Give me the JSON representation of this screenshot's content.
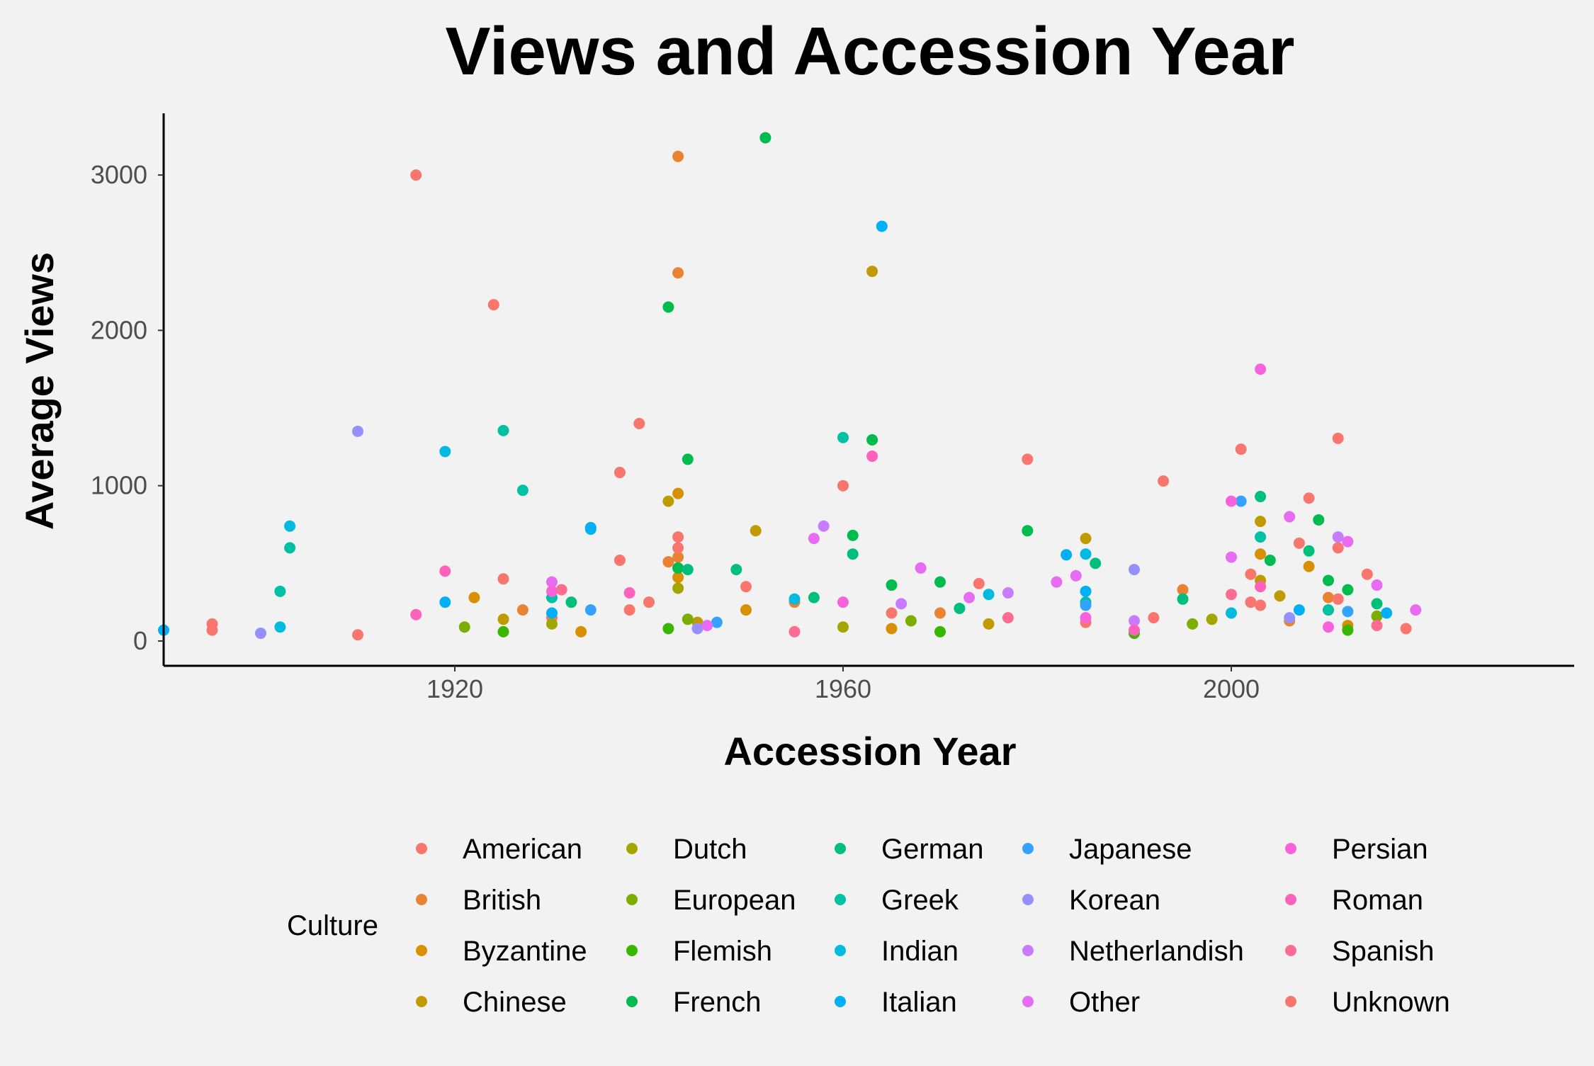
{
  "chart_data": {
    "type": "scatter",
    "title": "Views and Accession Year",
    "xlabel": "Accession Year",
    "ylabel": "Average Views",
    "xlim": [
      1890,
      2027
    ],
    "ylim": [
      -150,
      3400
    ],
    "x_ticks": [
      1920,
      1960,
      2000
    ],
    "y_ticks": [
      0,
      1000,
      2000,
      3000
    ],
    "grid": false,
    "legend": {
      "title": "Culture",
      "placement": "bottom",
      "ncol": 5
    },
    "series": [
      {
        "name": "American",
        "color": "#F8766D",
        "points": [
          [
            1916,
            3000
          ],
          [
            1924,
            2165
          ],
          [
            1925,
            400
          ],
          [
            1937,
            1085
          ],
          [
            1937,
            520
          ],
          [
            1939,
            1400
          ],
          [
            1960,
            1000
          ],
          [
            1974,
            370
          ],
          [
            1979,
            1170
          ],
          [
            1993,
            1030
          ],
          [
            2001,
            1235
          ],
          [
            2007,
            630
          ],
          [
            2008,
            920
          ],
          [
            2011,
            1305
          ],
          [
            2014,
            430
          ],
          [
            1895,
            110
          ],
          [
            1895,
            70
          ],
          [
            1910,
            40
          ],
          [
            1930,
            150
          ],
          [
            1940,
            250
          ],
          [
            1950,
            350
          ],
          [
            1985,
            120
          ],
          [
            2003,
            230
          ],
          [
            2002,
            430
          ],
          [
            2011,
            600
          ]
        ]
      },
      {
        "name": "British",
        "color": "#EA8331",
        "points": [
          [
            1943,
            3120
          ],
          [
            1943,
            2370
          ],
          [
            1943,
            540
          ],
          [
            1942,
            510
          ],
          [
            1927,
            200
          ],
          [
            1955,
            250
          ],
          [
            1970,
            180
          ],
          [
            1995,
            330
          ],
          [
            2006,
            130
          ],
          [
            2010,
            280
          ]
        ]
      },
      {
        "name": "Byzantine",
        "color": "#D89000",
        "points": [
          [
            1922,
            280
          ],
          [
            1943,
            950
          ],
          [
            1943,
            410
          ],
          [
            1950,
            200
          ],
          [
            1933,
            60
          ],
          [
            1965,
            80
          ],
          [
            2003,
            560
          ],
          [
            2008,
            480
          ],
          [
            2012,
            100
          ]
        ]
      },
      {
        "name": "Chinese",
        "color": "#C09B00",
        "points": [
          [
            1942,
            900
          ],
          [
            1951,
            710
          ],
          [
            1963,
            2380
          ],
          [
            1985,
            660
          ],
          [
            2003,
            770
          ],
          [
            2003,
            390
          ],
          [
            2005,
            290
          ],
          [
            1925,
            140
          ],
          [
            1945,
            120
          ],
          [
            1975,
            110
          ]
        ]
      },
      {
        "name": "Dutch",
        "color": "#A3A500",
        "points": [
          [
            1943,
            340
          ],
          [
            1943,
            470
          ],
          [
            1930,
            110
          ],
          [
            1960,
            90
          ],
          [
            1998,
            140
          ],
          [
            2010,
            200
          ]
        ]
      },
      {
        "name": "European",
        "color": "#7CAE00",
        "points": [
          [
            1921,
            90
          ],
          [
            1944,
            140
          ],
          [
            1967,
            130
          ],
          [
            1996,
            110
          ],
          [
            2015,
            160
          ]
        ]
      },
      {
        "name": "Flemish",
        "color": "#39B600",
        "points": [
          [
            1925,
            60
          ],
          [
            1942,
            80
          ],
          [
            1970,
            60
          ],
          [
            1990,
            50
          ],
          [
            2012,
            70
          ]
        ]
      },
      {
        "name": "French",
        "color": "#00BB4E",
        "points": [
          [
            1952,
            3240
          ],
          [
            1942,
            2150
          ],
          [
            1944,
            1170
          ],
          [
            1963,
            1295
          ],
          [
            1961,
            680
          ],
          [
            1979,
            710
          ],
          [
            2009,
            780
          ],
          [
            2004,
            520
          ],
          [
            2010,
            390
          ],
          [
            2012,
            330
          ],
          [
            1970,
            380
          ],
          [
            1943,
            470
          ],
          [
            1965,
            360
          ]
        ]
      },
      {
        "name": "German",
        "color": "#00BF7D",
        "points": [
          [
            1944,
            460
          ],
          [
            1949,
            460
          ],
          [
            1961,
            560
          ],
          [
            1986,
            500
          ],
          [
            2003,
            930
          ],
          [
            2008,
            580
          ],
          [
            1932,
            250
          ],
          [
            1957,
            280
          ],
          [
            1995,
            270
          ],
          [
            2015,
            240
          ],
          [
            1972,
            210
          ]
        ]
      },
      {
        "name": "Greek",
        "color": "#00C1A3",
        "points": [
          [
            1925,
            1355
          ],
          [
            1927,
            970
          ],
          [
            1960,
            1310
          ],
          [
            1902,
            320
          ],
          [
            1903,
            600
          ],
          [
            1930,
            280
          ],
          [
            1985,
            250
          ],
          [
            2003,
            670
          ],
          [
            2010,
            200
          ]
        ]
      },
      {
        "name": "Indian",
        "color": "#00BAE0",
        "points": [
          [
            1934,
            720
          ],
          [
            1919,
            1220
          ],
          [
            1903,
            740
          ],
          [
            1985,
            560
          ],
          [
            1902,
            90
          ],
          [
            1955,
            270
          ],
          [
            1975,
            300
          ],
          [
            2000,
            180
          ]
        ]
      },
      {
        "name": "Italian",
        "color": "#00B0F6",
        "points": [
          [
            1964,
            2670
          ],
          [
            1934,
            730
          ],
          [
            1919,
            250
          ],
          [
            1983,
            555
          ],
          [
            1985,
            320
          ],
          [
            1930,
            180
          ],
          [
            1890,
            70
          ],
          [
            2007,
            200
          ],
          [
            2016,
            180
          ]
        ]
      },
      {
        "name": "Japanese",
        "color": "#35A2FF",
        "points": [
          [
            2001,
            900
          ],
          [
            1934,
            200
          ],
          [
            1947,
            120
          ],
          [
            1985,
            230
          ],
          [
            2012,
            190
          ]
        ]
      },
      {
        "name": "Korean",
        "color": "#9590FF",
        "points": [
          [
            1910,
            1350
          ],
          [
            1990,
            460
          ],
          [
            1900,
            50
          ],
          [
            1945,
            80
          ],
          [
            2006,
            150
          ]
        ]
      },
      {
        "name": "Netherlandish",
        "color": "#C77CFF",
        "points": [
          [
            1958,
            740
          ],
          [
            1966,
            240
          ],
          [
            1977,
            310
          ],
          [
            1990,
            130
          ],
          [
            2011,
            670
          ]
        ]
      },
      {
        "name": "Other",
        "color": "#E76BF3",
        "points": [
          [
            1957,
            660
          ],
          [
            1968,
            470
          ],
          [
            1982,
            380
          ],
          [
            1984,
            420
          ],
          [
            2000,
            540
          ],
          [
            2015,
            360
          ],
          [
            2019,
            200
          ],
          [
            1930,
            380
          ],
          [
            1946,
            100
          ],
          [
            1973,
            280
          ],
          [
            2006,
            800
          ],
          [
            2012,
            640
          ]
        ]
      },
      {
        "name": "Persian",
        "color": "#FA62DB",
        "points": [
          [
            2003,
            1750
          ],
          [
            2000,
            900
          ],
          [
            1930,
            320
          ],
          [
            1960,
            250
          ],
          [
            1985,
            150
          ],
          [
            2010,
            90
          ]
        ]
      },
      {
        "name": "Roman",
        "color": "#FF62BC",
        "points": [
          [
            1963,
            1190
          ],
          [
            1919,
            450
          ],
          [
            1938,
            310
          ],
          [
            1916,
            170
          ],
          [
            2003,
            350
          ],
          [
            1990,
            70
          ]
        ]
      },
      {
        "name": "Spanish",
        "color": "#FF6C91",
        "points": [
          [
            1931,
            330
          ],
          [
            1955,
            60
          ],
          [
            1977,
            150
          ],
          [
            2000,
            300
          ],
          [
            2015,
            100
          ]
        ]
      },
      {
        "name": "Unknown",
        "color": "#F8766D",
        "points": [
          [
            1943,
            670
          ],
          [
            1943,
            600
          ],
          [
            1938,
            200
          ],
          [
            1965,
            180
          ],
          [
            1992,
            150
          ],
          [
            2002,
            250
          ],
          [
            2011,
            270
          ],
          [
            2018,
            80
          ]
        ]
      }
    ]
  }
}
